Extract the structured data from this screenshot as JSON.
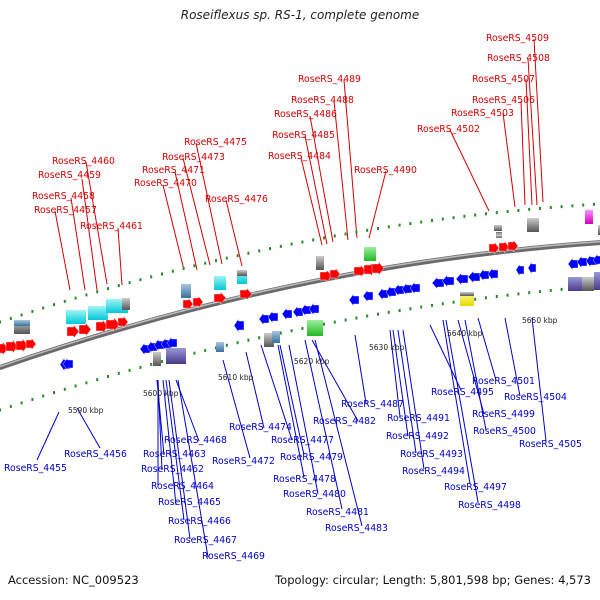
{
  "title": "Roseiflexus sp. RS-1, complete genome",
  "footer": {
    "accession": "Accession: NC_009523",
    "summary": "Topology: circular; Length: 5,801,598 bp; Genes: 4,573"
  },
  "colors": {
    "upper_label": "#d40000",
    "lower_label": "#0000cc",
    "forward_gene": "#ff0000",
    "reverse_gene": "#0000ff",
    "backbone": "#8a8a8a",
    "tick": "#2a8a2a"
  },
  "scale_labels": [
    "5590 kbp",
    "5600 kbp",
    "5610 kbp",
    "5620 kbp",
    "5630 kbp",
    "5640 kbp",
    "5650 kbp"
  ],
  "upper_genes": [
    "RoseRS_4457",
    "RoseRS_4458",
    "RoseRS_4459",
    "RoseRS_4460",
    "RoseRS_4461",
    "RoseRS_4470",
    "RoseRS_4471",
    "RoseRS_4473",
    "RoseRS_4475",
    "RoseRS_4476",
    "RoseRS_4484",
    "RoseRS_4485",
    "RoseRS_4486",
    "RoseRS_4488",
    "RoseRS_4489",
    "RoseRS_4490",
    "RoseRS_4502",
    "RoseRS_4503",
    "RoseRS_4506",
    "RoseRS_4507",
    "RoseRS_4508",
    "RoseRS_4509"
  ],
  "lower_genes": [
    "RoseRS_4455",
    "RoseRS_4456",
    "RoseRS_4462",
    "RoseRS_4463",
    "RoseRS_4464",
    "RoseRS_4465",
    "RoseRS_4466",
    "RoseRS_4467",
    "RoseRS_4468",
    "RoseRS_4469",
    "RoseRS_4472",
    "RoseRS_4474",
    "RoseRS_4477",
    "RoseRS_4478",
    "RoseRS_4479",
    "RoseRS_4480",
    "RoseRS_4481",
    "RoseRS_4482",
    "RoseRS_4483",
    "RoseRS_4487",
    "RoseRS_4491",
    "RoseRS_4492",
    "RoseRS_4493",
    "RoseRS_4494",
    "RoseRS_4495",
    "RoseRS_4497",
    "RoseRS_4498",
    "RoseRS_4499",
    "RoseRS_4500",
    "RoseRS_4501",
    "RoseRS_4504",
    "RoseRS_4505"
  ]
}
